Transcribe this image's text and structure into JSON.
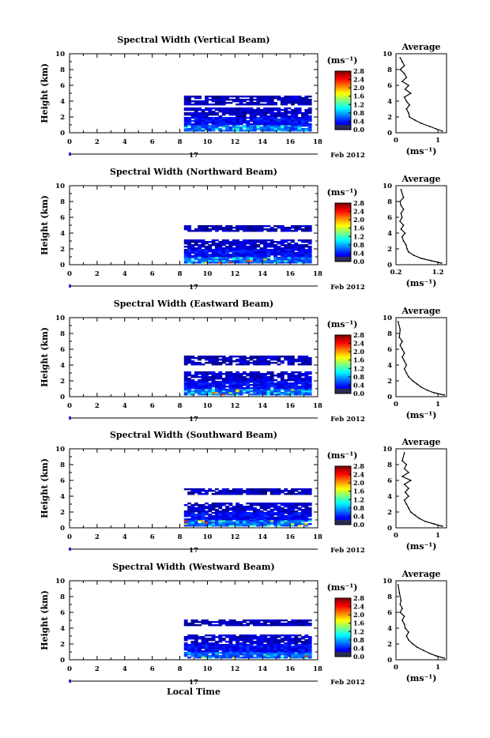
{
  "figure": {
    "xlabel": "Local Time",
    "day_label": "17",
    "date_label": "Feb 2012",
    "ylabel": "Height (km)",
    "unit_label": "(ms⁻¹)",
    "avg_title": "Average",
    "avg_xlabel": "(ms⁻¹)"
  },
  "chart_data": [
    {
      "type": "heatmap",
      "title": "Spectral Width (Vertical Beam)",
      "xlabel": "Local Time",
      "ylabel": "Height (km)",
      "xlim": [
        0,
        18
      ],
      "ylim": [
        0,
        10
      ],
      "xticks": [
        0,
        2,
        4,
        6,
        8,
        10,
        12,
        14,
        16,
        18
      ],
      "yticks": [
        0,
        2,
        4,
        6,
        8,
        10
      ],
      "colorbar": {
        "label": "(ms⁻¹)",
        "range": [
          0,
          2.8
        ],
        "ticks": [
          "0.0",
          "0.4",
          "0.8",
          "1.2",
          "1.6",
          "2.0",
          "2.4",
          "2.8"
        ]
      },
      "data_time_range": [
        8.3,
        17.5
      ],
      "layers": [
        {
          "height_km": [
            0.2,
            1.0
          ],
          "width_ms": 0.6
        },
        {
          "height_km": [
            1.0,
            2.0
          ],
          "width_ms": 0.35
        },
        {
          "height_km": [
            2.0,
            3.1
          ],
          "width_ms": 0.2
        },
        {
          "height_km": [
            3.5,
            4.6
          ],
          "width_ms": 0.15
        }
      ],
      "average": {
        "xlim": [
          0,
          1.2
        ],
        "xticks": [
          "0",
          "1"
        ],
        "x": [
          1.1,
          0.95,
          0.8,
          0.6,
          0.45,
          0.32,
          0.3,
          0.25,
          0.32,
          0.25,
          0.2,
          0.35,
          0.22,
          0.3,
          0.15,
          0.25,
          0.2,
          0.1,
          0.2,
          0.15,
          0.1
        ],
        "y": [
          0.2,
          0.5,
          0.8,
          1.2,
          1.6,
          2.0,
          2.5,
          3.0,
          3.5,
          4.0,
          4.5,
          5.0,
          5.5,
          6.0,
          6.5,
          7.0,
          7.5,
          8.0,
          8.5,
          9.0,
          9.5
        ]
      }
    },
    {
      "type": "heatmap",
      "title": "Spectral Width (Northward Beam)",
      "xlabel": "Local Time",
      "ylabel": "Height (km)",
      "xlim": [
        0,
        18
      ],
      "ylim": [
        0,
        10
      ],
      "xticks": [
        0,
        2,
        4,
        6,
        8,
        10,
        12,
        14,
        16,
        18
      ],
      "yticks": [
        0,
        2,
        4,
        6,
        8,
        10
      ],
      "colorbar": {
        "label": "(ms⁻¹)",
        "range": [
          0,
          2.8
        ],
        "ticks": [
          "0.0",
          "0.4",
          "0.8",
          "1.2",
          "1.6",
          "2.0",
          "2.4",
          "2.8"
        ]
      },
      "data_time_range": [
        8.3,
        17.5
      ],
      "layers": [
        {
          "height_km": [
            0.2,
            1.0
          ],
          "width_ms": 0.6
        },
        {
          "height_km": [
            1.0,
            2.0
          ],
          "width_ms": 0.35
        },
        {
          "height_km": [
            2.0,
            3.1
          ],
          "width_ms": 0.2
        },
        {
          "height_km": [
            4.2,
            4.9
          ],
          "width_ms": 0.15
        }
      ],
      "average": {
        "xlim": [
          0.2,
          1.2
        ],
        "xticks": [
          "0.2",
          "1.2"
        ],
        "x": [
          1.1,
          0.9,
          0.7,
          0.55,
          0.45,
          0.42,
          0.4,
          0.35,
          0.32,
          0.38,
          0.3,
          0.35,
          0.28,
          0.32,
          0.3,
          0.35,
          0.3,
          0.28,
          0.35,
          0.3
        ],
        "y": [
          0.2,
          0.5,
          0.8,
          1.2,
          1.6,
          2.0,
          2.5,
          3.0,
          3.5,
          4.0,
          4.5,
          5.0,
          5.5,
          6.0,
          6.5,
          7.0,
          7.5,
          8.0,
          8.5,
          9.5
        ]
      }
    },
    {
      "type": "heatmap",
      "title": "Spectral Width (Eastward Beam)",
      "xlabel": "Local Time",
      "ylabel": "Height (km)",
      "xlim": [
        0,
        18
      ],
      "ylim": [
        0,
        10
      ],
      "xticks": [
        0,
        2,
        4,
        6,
        8,
        10,
        12,
        14,
        16,
        18
      ],
      "yticks": [
        0,
        2,
        4,
        6,
        8,
        10
      ],
      "colorbar": {
        "label": "(ms⁻¹)",
        "range": [
          0,
          2.8
        ],
        "ticks": [
          "0.0",
          "0.4",
          "0.8",
          "1.2",
          "1.6",
          "2.0",
          "2.4",
          "2.8"
        ]
      },
      "data_time_range": [
        8.3,
        17.5
      ],
      "layers": [
        {
          "height_km": [
            0.2,
            1.0
          ],
          "width_ms": 0.6
        },
        {
          "height_km": [
            1.0,
            2.0
          ],
          "width_ms": 0.35
        },
        {
          "height_km": [
            2.0,
            3.1
          ],
          "width_ms": 0.2
        },
        {
          "height_km": [
            4.0,
            5.2
          ],
          "width_ms": 0.15
        }
      ],
      "average": {
        "xlim": [
          0,
          1.2
        ],
        "xticks": [
          "0",
          "1"
        ],
        "x": [
          1.15,
          0.9,
          0.75,
          0.6,
          0.5,
          0.4,
          0.3,
          0.25,
          0.2,
          0.25,
          0.2,
          0.15,
          0.2,
          0.15,
          0.1,
          0.15,
          0.08,
          0.1,
          0.05
        ],
        "y": [
          0.2,
          0.5,
          0.8,
          1.2,
          1.6,
          2.0,
          2.5,
          3.0,
          3.5,
          4.0,
          4.5,
          5.0,
          5.5,
          6.0,
          6.5,
          7.0,
          7.5,
          8.5,
          9.5
        ]
      }
    },
    {
      "type": "heatmap",
      "title": "Spectral Width (Southward Beam)",
      "xlabel": "Local Time",
      "ylabel": "Height (km)",
      "xlim": [
        0,
        18
      ],
      "ylim": [
        0,
        10
      ],
      "xticks": [
        0,
        2,
        4,
        6,
        8,
        10,
        12,
        14,
        16,
        18
      ],
      "yticks": [
        0,
        2,
        4,
        6,
        8,
        10
      ],
      "colorbar": {
        "label": "(ms⁻¹)",
        "range": [
          0,
          2.8
        ],
        "ticks": [
          "0.0",
          "0.4",
          "0.8",
          "1.2",
          "1.6",
          "2.0",
          "2.4",
          "2.8"
        ]
      },
      "data_time_range": [
        8.3,
        17.5
      ],
      "layers": [
        {
          "height_km": [
            0.2,
            1.0
          ],
          "width_ms": 0.6
        },
        {
          "height_km": [
            1.0,
            2.0
          ],
          "width_ms": 0.35
        },
        {
          "height_km": [
            2.0,
            3.1
          ],
          "width_ms": 0.2
        },
        {
          "height_km": [
            4.2,
            5.0
          ],
          "width_ms": 0.15
        }
      ],
      "average": {
        "xlim": [
          0,
          1.2
        ],
        "xticks": [
          "0",
          "1"
        ],
        "x": [
          1.1,
          0.9,
          0.7,
          0.55,
          0.45,
          0.35,
          0.3,
          0.25,
          0.2,
          0.3,
          0.22,
          0.3,
          0.2,
          0.35,
          0.15,
          0.3,
          0.2,
          0.25,
          0.15,
          0.2
        ],
        "y": [
          0.2,
          0.5,
          0.8,
          1.2,
          1.6,
          2.0,
          2.5,
          3.0,
          3.5,
          4.0,
          4.5,
          5.0,
          5.5,
          6.0,
          6.5,
          7.0,
          7.5,
          8.0,
          8.5,
          9.5
        ]
      }
    },
    {
      "type": "heatmap",
      "title": "Spectral Width (Westward Beam)",
      "xlabel": "Local Time",
      "ylabel": "Height (km)",
      "xlim": [
        0,
        18
      ],
      "ylim": [
        0,
        10
      ],
      "xticks": [
        0,
        2,
        4,
        6,
        8,
        10,
        12,
        14,
        16,
        18
      ],
      "yticks": [
        0,
        2,
        4,
        6,
        8,
        10
      ],
      "colorbar": {
        "label": "(ms⁻¹)",
        "range": [
          0,
          2.8
        ],
        "ticks": [
          "0.0",
          "0.4",
          "0.8",
          "1.2",
          "1.6",
          "2.0",
          "2.4",
          "2.8"
        ]
      },
      "data_time_range": [
        8.3,
        17.5
      ],
      "layers": [
        {
          "height_km": [
            0.2,
            1.0
          ],
          "width_ms": 0.6
        },
        {
          "height_km": [
            1.0,
            2.0
          ],
          "width_ms": 0.35
        },
        {
          "height_km": [
            2.0,
            3.1
          ],
          "width_ms": 0.2
        },
        {
          "height_km": [
            4.3,
            5.0
          ],
          "width_ms": 0.15
        }
      ],
      "average": {
        "xlim": [
          0,
          1.2
        ],
        "xticks": [
          "0",
          "1"
        ],
        "x": [
          1.15,
          0.95,
          0.8,
          0.65,
          0.5,
          0.4,
          0.3,
          0.25,
          0.3,
          0.22,
          0.2,
          0.15,
          0.2,
          0.1,
          0.15,
          0.1,
          0.12,
          0.08,
          0.05
        ],
        "y": [
          0.2,
          0.5,
          0.8,
          1.2,
          1.6,
          2.0,
          2.5,
          3.0,
          3.5,
          4.0,
          4.5,
          5.0,
          5.5,
          6.0,
          6.5,
          7.0,
          7.5,
          8.5,
          9.5
        ]
      }
    }
  ]
}
